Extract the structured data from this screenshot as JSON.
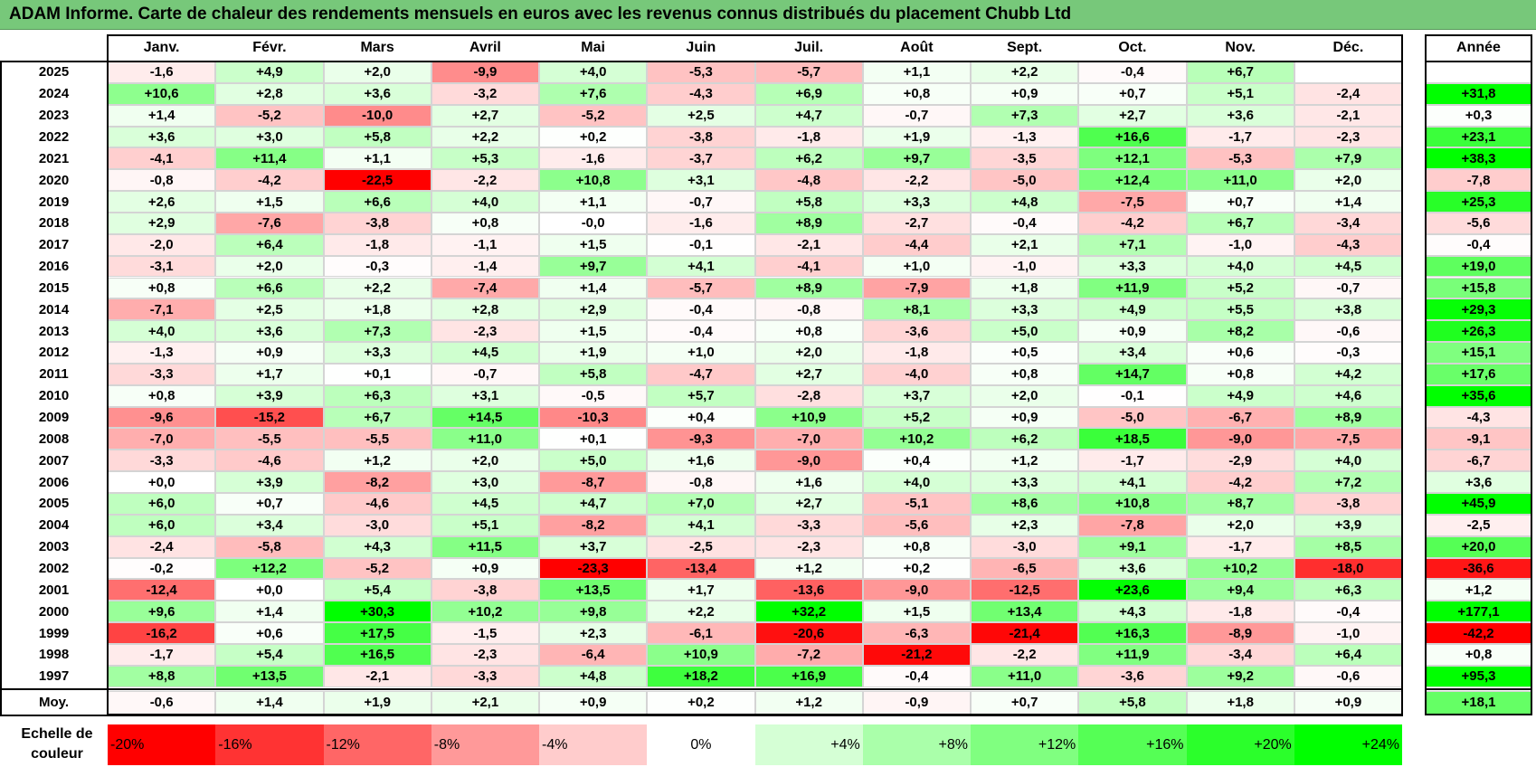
{
  "title": "ADAM Informe. Carte de chaleur des rendements mensuels en euros avec les revenus connus distribués du placement Chubb Ltd",
  "chart_data": {
    "type": "heatmap",
    "title": "ADAM Informe. Carte de chaleur des rendements mensuels en euros avec les revenus connus distribués du placement Chubb Ltd",
    "months": [
      "Janv.",
      "Févr.",
      "Mars",
      "Avril",
      "Mai",
      "Juin",
      "Juil.",
      "Août",
      "Sept.",
      "Oct.",
      "Nov.",
      "Déc."
    ],
    "annual_header": "Année",
    "average_label": "Moy.",
    "rows": [
      {
        "year": "2025",
        "values": [
          "-1,6",
          "+4,9",
          "+2,0",
          "-9,9",
          "+4,0",
          "-5,3",
          "-5,7",
          "+1,1",
          "+2,2",
          "-0,4",
          "+6,7",
          ""
        ],
        "annual": ""
      },
      {
        "year": "2024",
        "values": [
          "+10,6",
          "+2,8",
          "+3,6",
          "-3,2",
          "+7,6",
          "-4,3",
          "+6,9",
          "+0,8",
          "+0,9",
          "+0,7",
          "+5,1",
          "-2,4"
        ],
        "annual": "+31,8"
      },
      {
        "year": "2023",
        "values": [
          "+1,4",
          "-5,2",
          "-10,0",
          "+2,7",
          "-5,2",
          "+2,5",
          "+4,7",
          "-0,7",
          "+7,3",
          "+2,7",
          "+3,6",
          "-2,1"
        ],
        "annual": "+0,3"
      },
      {
        "year": "2022",
        "values": [
          "+3,6",
          "+3,0",
          "+5,8",
          "+2,2",
          "+0,2",
          "-3,8",
          "-1,8",
          "+1,9",
          "-1,3",
          "+16,6",
          "-1,7",
          "-2,3"
        ],
        "annual": "+23,1"
      },
      {
        "year": "2021",
        "values": [
          "-4,1",
          "+11,4",
          "+1,1",
          "+5,3",
          "-1,6",
          "-3,7",
          "+6,2",
          "+9,7",
          "-3,5",
          "+12,1",
          "-5,3",
          "+7,9"
        ],
        "annual": "+38,3"
      },
      {
        "year": "2020",
        "values": [
          "-0,8",
          "-4,2",
          "-22,5",
          "-2,2",
          "+10,8",
          "+3,1",
          "-4,8",
          "-2,2",
          "-5,0",
          "+12,4",
          "+11,0",
          "+2,0"
        ],
        "annual": "-7,8"
      },
      {
        "year": "2019",
        "values": [
          "+2,6",
          "+1,5",
          "+6,6",
          "+4,0",
          "+1,1",
          "-0,7",
          "+5,8",
          "+3,3",
          "+4,8",
          "-7,5",
          "+0,7",
          "+1,4"
        ],
        "annual": "+25,3"
      },
      {
        "year": "2018",
        "values": [
          "+2,9",
          "-7,6",
          "-3,8",
          "+0,8",
          "-0,0",
          "-1,6",
          "+8,9",
          "-2,7",
          "-0,4",
          "-4,2",
          "+6,7",
          "-3,4"
        ],
        "annual": "-5,6"
      },
      {
        "year": "2017",
        "values": [
          "-2,0",
          "+6,4",
          "-1,8",
          "-1,1",
          "+1,5",
          "-0,1",
          "-2,1",
          "-4,4",
          "+2,1",
          "+7,1",
          "-1,0",
          "-4,3"
        ],
        "annual": "-0,4"
      },
      {
        "year": "2016",
        "values": [
          "-3,1",
          "+2,0",
          "-0,3",
          "-1,4",
          "+9,7",
          "+4,1",
          "-4,1",
          "+1,0",
          "-1,0",
          "+3,3",
          "+4,0",
          "+4,5"
        ],
        "annual": "+19,0"
      },
      {
        "year": "2015",
        "values": [
          "+0,8",
          "+6,6",
          "+2,2",
          "-7,4",
          "+1,4",
          "-5,7",
          "+8,9",
          "-7,9",
          "+1,8",
          "+11,9",
          "+5,2",
          "-0,7"
        ],
        "annual": "+15,8"
      },
      {
        "year": "2014",
        "values": [
          "-7,1",
          "+2,5",
          "+1,8",
          "+2,8",
          "+2,9",
          "-0,4",
          "-0,8",
          "+8,1",
          "+3,3",
          "+4,9",
          "+5,5",
          "+3,8"
        ],
        "annual": "+29,3"
      },
      {
        "year": "2013",
        "values": [
          "+4,0",
          "+3,6",
          "+7,3",
          "-2,3",
          "+1,5",
          "-0,4",
          "+0,8",
          "-3,6",
          "+5,0",
          "+0,9",
          "+8,2",
          "-0,6"
        ],
        "annual": "+26,3"
      },
      {
        "year": "2012",
        "values": [
          "-1,3",
          "+0,9",
          "+3,3",
          "+4,5",
          "+1,9",
          "+1,0",
          "+2,0",
          "-1,8",
          "+0,5",
          "+3,4",
          "+0,6",
          "-0,3"
        ],
        "annual": "+15,1"
      },
      {
        "year": "2011",
        "values": [
          "-3,3",
          "+1,7",
          "+0,1",
          "-0,7",
          "+5,8",
          "-4,7",
          "+2,7",
          "-4,0",
          "+0,8",
          "+14,7",
          "+0,8",
          "+4,2"
        ],
        "annual": "+17,6"
      },
      {
        "year": "2010",
        "values": [
          "+0,8",
          "+3,9",
          "+6,3",
          "+3,1",
          "-0,5",
          "+5,7",
          "-2,8",
          "+3,7",
          "+2,0",
          "-0,1",
          "+4,9",
          "+4,6"
        ],
        "annual": "+35,6"
      },
      {
        "year": "2009",
        "values": [
          "-9,6",
          "-15,2",
          "+6,7",
          "+14,5",
          "-10,3",
          "+0,4",
          "+10,9",
          "+5,2",
          "+0,9",
          "-5,0",
          "-6,7",
          "+8,9"
        ],
        "annual": "-4,3"
      },
      {
        "year": "2008",
        "values": [
          "-7,0",
          "-5,5",
          "-5,5",
          "+11,0",
          "+0,1",
          "-9,3",
          "-7,0",
          "+10,2",
          "+6,2",
          "+18,5",
          "-9,0",
          "-7,5"
        ],
        "annual": "-9,1"
      },
      {
        "year": "2007",
        "values": [
          "-3,3",
          "-4,6",
          "+1,2",
          "+2,0",
          "+5,0",
          "+1,6",
          "-9,0",
          "+0,4",
          "+1,2",
          "-1,7",
          "-2,9",
          "+4,0"
        ],
        "annual": "-6,7"
      },
      {
        "year": "2006",
        "values": [
          "+0,0",
          "+3,9",
          "-8,2",
          "+3,0",
          "-8,7",
          "-0,8",
          "+1,6",
          "+4,0",
          "+3,3",
          "+4,1",
          "-4,2",
          "+7,2"
        ],
        "annual": "+3,6"
      },
      {
        "year": "2005",
        "values": [
          "+6,0",
          "+0,7",
          "-4,6",
          "+4,5",
          "+4,7",
          "+7,0",
          "+2,7",
          "-5,1",
          "+8,6",
          "+10,8",
          "+8,7",
          "-3,8"
        ],
        "annual": "+45,9"
      },
      {
        "year": "2004",
        "values": [
          "+6,0",
          "+3,4",
          "-3,0",
          "+5,1",
          "-8,2",
          "+4,1",
          "-3,3",
          "-5,6",
          "+2,3",
          "-7,8",
          "+2,0",
          "+3,9"
        ],
        "annual": "-2,5"
      },
      {
        "year": "2003",
        "values": [
          "-2,4",
          "-5,8",
          "+4,3",
          "+11,5",
          "+3,7",
          "-2,5",
          "-2,3",
          "+0,8",
          "-3,0",
          "+9,1",
          "-1,7",
          "+8,5"
        ],
        "annual": "+20,0"
      },
      {
        "year": "2002",
        "values": [
          "-0,2",
          "+12,2",
          "-5,2",
          "+0,9",
          "-23,3",
          "-13,4",
          "+1,2",
          "+0,2",
          "-6,5",
          "+3,6",
          "+10,2",
          "-18,0"
        ],
        "annual": "-36,6"
      },
      {
        "year": "2001",
        "values": [
          "-12,4",
          "+0,0",
          "+5,4",
          "-3,8",
          "+13,5",
          "+1,7",
          "-13,6",
          "-9,0",
          "-12,5",
          "+23,6",
          "+9,4",
          "+6,3"
        ],
        "annual": "+1,2"
      },
      {
        "year": "2000",
        "values": [
          "+9,6",
          "+1,4",
          "+30,3",
          "+10,2",
          "+9,8",
          "+2,2",
          "+32,2",
          "+1,5",
          "+13,4",
          "+4,3",
          "-1,8",
          "-0,4"
        ],
        "annual": "+177,1"
      },
      {
        "year": "1999",
        "values": [
          "-16,2",
          "+0,6",
          "+17,5",
          "-1,5",
          "+2,3",
          "-6,1",
          "-20,6",
          "-6,3",
          "-21,4",
          "+16,3",
          "-8,9",
          "-1,0"
        ],
        "annual": "-42,2"
      },
      {
        "year": "1998",
        "values": [
          "-1,7",
          "+5,4",
          "+16,5",
          "-2,3",
          "-6,4",
          "+10,9",
          "-7,2",
          "-21,2",
          "-2,2",
          "+11,9",
          "-3,4",
          "+6,4"
        ],
        "annual": "+0,8"
      },
      {
        "year": "1997",
        "values": [
          "+8,8",
          "+13,5",
          "-2,1",
          "-3,3",
          "+4,8",
          "+18,2",
          "+16,9",
          "-0,4",
          "+11,0",
          "-3,6",
          "+9,2",
          "-0,6"
        ],
        "annual": "+95,3"
      }
    ],
    "average": {
      "values": [
        "-0,6",
        "+1,4",
        "+1,9",
        "+2,1",
        "+0,9",
        "+0,2",
        "+1,2",
        "-0,9",
        "+0,7",
        "+5,8",
        "+1,8",
        "+0,9"
      ],
      "annual": "+18,1"
    },
    "scale_label": "Echelle de couleur",
    "scale": [
      "-20%",
      "-16%",
      "-12%",
      "-8%",
      "-4%",
      "0%",
      "+4%",
      "+8%",
      "+12%",
      "+16%",
      "+20%",
      "+24%"
    ],
    "colors": {
      "negative_max": "#ff0000",
      "neutral": "#ffffff",
      "positive_max": "#00ff00",
      "title_bg": "#77c87a"
    }
  }
}
